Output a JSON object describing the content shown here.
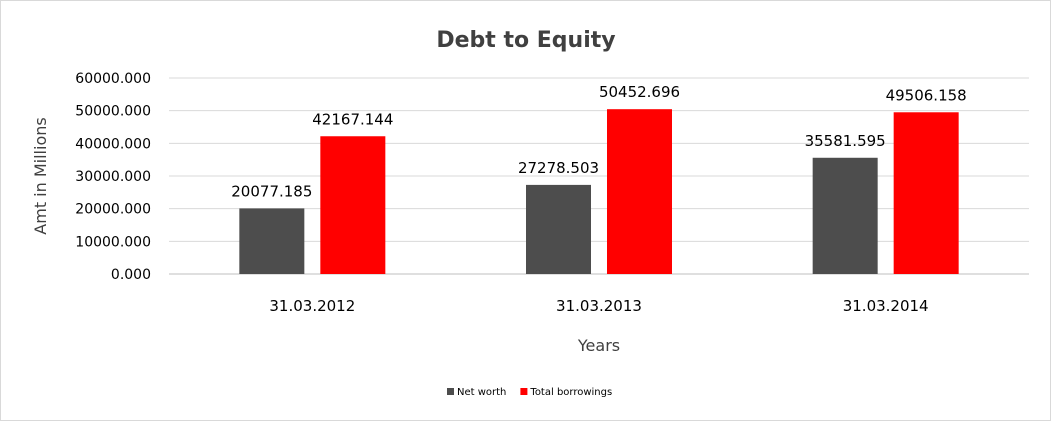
{
  "chart_data": {
    "type": "bar",
    "title": "Debt to Equity",
    "xlabel": "Years",
    "ylabel": "Amt in Millions",
    "categories": [
      "31.03.2012",
      "31.03.2013",
      "31.03.2014"
    ],
    "series": [
      {
        "name": "Net worth",
        "color": "#4d4d4d",
        "values": [
          20077.185,
          27278.503,
          35581.595
        ],
        "labels": [
          "20077.185",
          "27278.503",
          "35581.595"
        ]
      },
      {
        "name": "Total borrowings",
        "color": "#ff0000",
        "values": [
          42167.144,
          50452.696,
          49506.158
        ],
        "labels": [
          "42167.144",
          "50452.696",
          "49506.158"
        ]
      }
    ],
    "ylim": [
      0,
      60000
    ],
    "yticks": [
      "0.000",
      "10000.000",
      "20000.000",
      "30000.000",
      "40000.000",
      "50000.000",
      "60000.000"
    ],
    "grid": true,
    "legend": "bottom"
  }
}
